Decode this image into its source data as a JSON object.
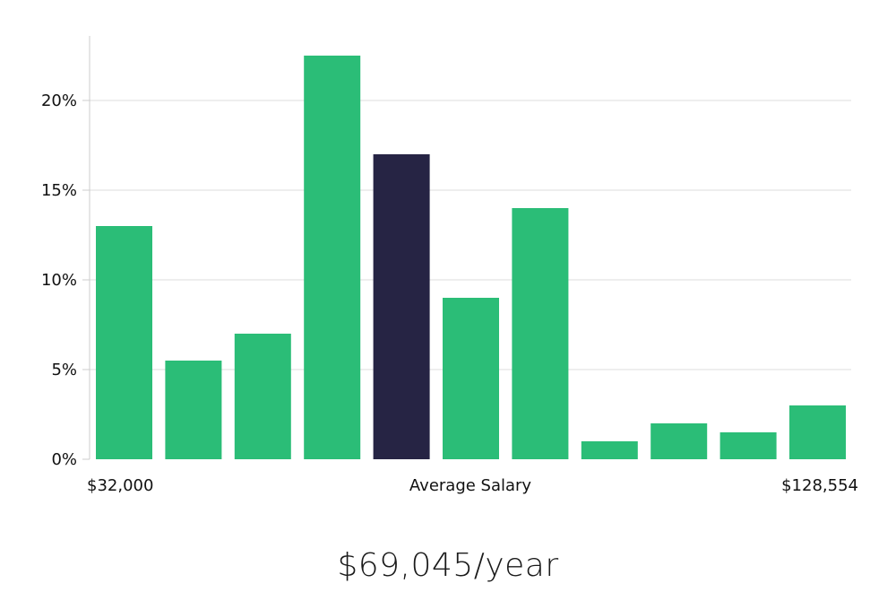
{
  "chart_data": {
    "type": "bar",
    "y_ticks": [
      "0%",
      "5%",
      "10%",
      "15%",
      "20%"
    ],
    "y_tick_values": [
      0,
      5,
      10,
      15,
      20
    ],
    "ylim": [
      0,
      23.5
    ],
    "grid": true,
    "x_axis_labels": {
      "start": "$32,000",
      "middle": "Average Salary",
      "end": "$128,554"
    },
    "values": [
      13,
      5.5,
      7,
      22.5,
      17,
      9,
      14,
      1,
      2,
      1.5,
      3
    ],
    "highlight_index": 4
  },
  "colors": {
    "bar": "#2bbd77",
    "bar_highlight": "#262444",
    "grid": "#dddddd",
    "axis": "#cccccc"
  },
  "summary": {
    "average_salary_text": "$69,045/year"
  }
}
